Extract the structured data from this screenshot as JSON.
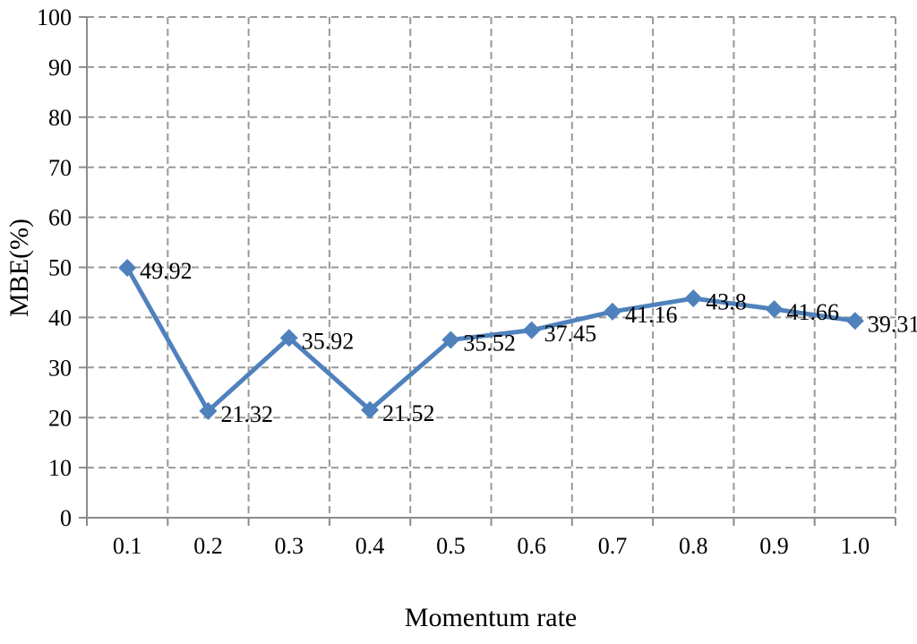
{
  "chart_data": {
    "type": "line",
    "title": "",
    "xlabel": "Momentum rate",
    "ylabel": "MBE(%)",
    "categories": [
      "0.1",
      "0.2",
      "0.3",
      "0.4",
      "0.5",
      "0.6",
      "0.7",
      "0.8",
      "0.9",
      "1.0"
    ],
    "values": [
      49.92,
      21.32,
      35.92,
      21.52,
      35.52,
      37.45,
      41.16,
      43.8,
      41.66,
      39.31
    ],
    "point_labels": [
      "49.92",
      "21.32",
      "35.92",
      "21.52",
      "35.52",
      "37.45",
      "41.16",
      "43.8",
      "41.66",
      "39.31"
    ],
    "ylim": [
      0,
      100
    ],
    "yticks": [
      0,
      10,
      20,
      30,
      40,
      50,
      60,
      70,
      80,
      90,
      100
    ],
    "grid": "dashed-horizontal-and-vertical",
    "legend": "none",
    "marker": "diamond",
    "colors": {
      "line": "#4F81BD",
      "marker": "#4F81BD",
      "axis": "#8C8C8C",
      "grid": "#999999",
      "text": "#000000",
      "background": "#FFFFFF"
    }
  }
}
